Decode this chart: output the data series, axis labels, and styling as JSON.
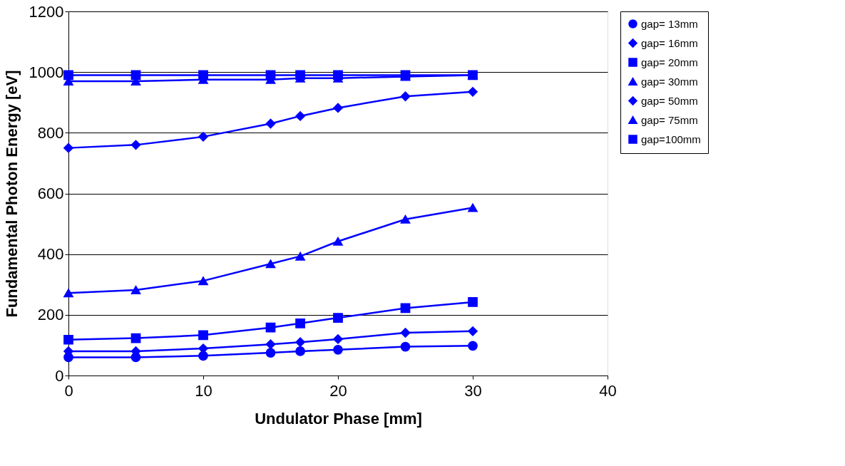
{
  "chart_data": {
    "type": "line",
    "xlabel": "Undulator Phase [mm]",
    "ylabel": "Fundamental Photon Energy [eV]",
    "x": [
      0,
      5,
      10,
      15,
      17.2,
      20,
      25,
      30
    ],
    "xlim": [
      0,
      40
    ],
    "xticks": [
      0,
      10,
      20,
      30,
      40
    ],
    "ylim": [
      0,
      1200
    ],
    "yticks": [
      0,
      200,
      400,
      600,
      800,
      1000,
      1200
    ],
    "grid": "y",
    "legend": "right",
    "line_style": "solid",
    "series": [
      {
        "name": "gap= 13mm",
        "color": "#0000ff",
        "marker": "circle",
        "values": [
          60,
          60,
          65,
          75,
          80,
          85,
          95,
          98
        ]
      },
      {
        "name": "gap= 16mm",
        "color": "#0000ff",
        "marker": "diamond",
        "values": [
          80,
          80,
          89,
          103,
          110,
          120,
          141,
          146
        ]
      },
      {
        "name": "gap= 20mm",
        "color": "#0000ff",
        "marker": "square",
        "values": [
          118,
          123,
          133,
          158,
          172,
          190,
          222,
          242
        ]
      },
      {
        "name": "gap= 30mm",
        "color": "#0000ff",
        "marker": "triangle",
        "values": [
          272,
          282,
          312,
          368,
          393,
          442,
          515,
          553
        ]
      },
      {
        "name": "gap= 50mm",
        "color": "#0000ff",
        "marker": "diamond",
        "values": [
          750,
          760,
          787,
          830,
          855,
          882,
          920,
          935
        ]
      },
      {
        "name": "gap= 75mm",
        "color": "#0000ff",
        "marker": "triangle",
        "values": [
          970,
          970,
          975,
          975,
          980,
          980,
          985,
          990
        ]
      },
      {
        "name": "gap=100mm",
        "color": "#0000ff",
        "marker": "square",
        "values": [
          990,
          990,
          990,
          990,
          990,
          990,
          990,
          990
        ]
      }
    ]
  }
}
